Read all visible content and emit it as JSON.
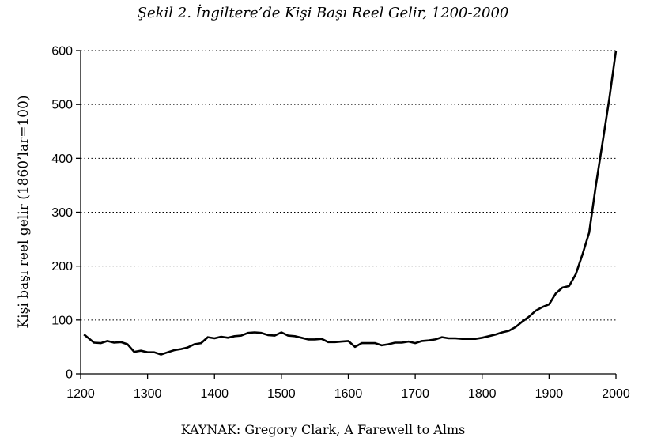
{
  "title": "Şekil 2. İngiltere’de Kişi Başı Reel Gelir, 1200-2000",
  "source": "KAYNAK: Gregory Clark, A Farewell to Alms",
  "chart_data": {
    "type": "line",
    "title": "Şekil 2. İngiltere’de Kişi Başı Reel Gelir, 1200-2000",
    "xlabel": "",
    "ylabel": "Kişi başı reel gelir (1860’lar=100)",
    "xlim": [
      1200,
      2000
    ],
    "ylim": [
      0,
      600
    ],
    "xticks": [
      "1200",
      "1300",
      "1400",
      "1500",
      "1600",
      "1700",
      "1800",
      "1900",
      "2000"
    ],
    "yticks": [
      "0",
      "100",
      "200",
      "300",
      "400",
      "500",
      "600"
    ],
    "grid": "horizontal dotted",
    "series": [
      {
        "color": "#000000",
        "x": [
          1205,
          1210,
          1220,
          1230,
          1240,
          1250,
          1260,
          1270,
          1280,
          1290,
          1300,
          1310,
          1320,
          1330,
          1340,
          1350,
          1360,
          1370,
          1380,
          1390,
          1400,
          1410,
          1420,
          1430,
          1440,
          1450,
          1460,
          1470,
          1480,
          1490,
          1500,
          1510,
          1520,
          1530,
          1540,
          1550,
          1560,
          1570,
          1580,
          1590,
          1600,
          1610,
          1620,
          1630,
          1640,
          1650,
          1660,
          1670,
          1680,
          1690,
          1700,
          1710,
          1720,
          1730,
          1740,
          1750,
          1760,
          1770,
          1780,
          1790,
          1800,
          1810,
          1820,
          1830,
          1840,
          1850,
          1860,
          1870,
          1880,
          1890,
          1900,
          1910,
          1920,
          1930,
          1940,
          1950,
          1960,
          1970,
          1980,
          1990,
          2000
        ],
        "y": [
          73,
          68,
          58,
          57,
          61,
          58,
          59,
          55,
          41,
          43,
          40,
          40,
          36,
          40,
          44,
          46,
          49,
          55,
          57,
          68,
          66,
          69,
          67,
          70,
          71,
          76,
          77,
          76,
          72,
          71,
          77,
          71,
          70,
          67,
          64,
          64,
          65,
          59,
          59,
          60,
          61,
          50,
          57,
          57,
          57,
          53,
          55,
          58,
          58,
          60,
          57,
          61,
          62,
          64,
          68,
          66,
          66,
          65,
          65,
          65,
          67,
          70,
          73,
          77,
          80,
          87,
          97,
          106,
          117,
          124,
          129,
          149,
          160,
          163,
          185,
          222,
          262,
          350,
          430,
          510,
          600
        ]
      }
    ]
  }
}
